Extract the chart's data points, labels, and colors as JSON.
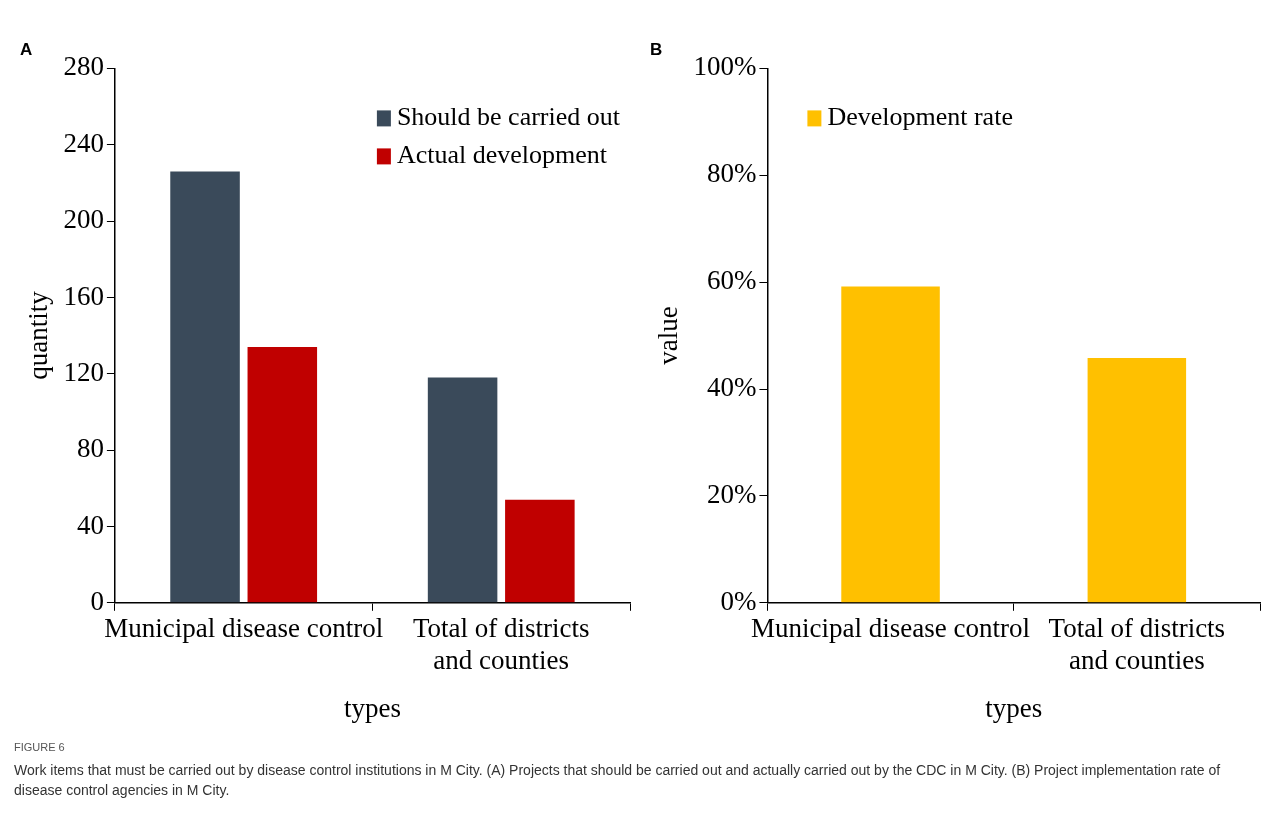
{
  "chart_data": [
    {
      "type": "bar",
      "title": "A",
      "xlabel": "types",
      "ylabel": "quantity",
      "categories": [
        "Municipal disease control",
        "Total of districts and counties"
      ],
      "series": [
        {
          "name": "Should be carried out",
          "color": "#3a4a5a",
          "values": [
            226,
            118
          ]
        },
        {
          "name": "Actual development",
          "color": "#c00000",
          "values": [
            134,
            54
          ]
        }
      ],
      "ylim": [
        0,
        280
      ],
      "yticks": [
        0,
        40,
        80,
        120,
        160,
        200,
        240,
        280
      ],
      "grid": false,
      "legend": "top right",
      "annotations": [
        "FIGURE 6",
        "Work items that must be carried out by disease control institutions in M City. (A) Projects that should be carried out and actually carried out by the CDC in M City. (B) Project implementation rate of disease control agencies in M City."
      ]
    },
    {
      "type": "bar",
      "title": "B",
      "xlabel": "types",
      "ylabel": "value",
      "categories": [
        "Municipal disease control",
        "Total of districts and counties"
      ],
      "series": [
        {
          "name": "Development rate",
          "color": "#ffc000",
          "values": [
            59.2,
            45.8
          ]
        }
      ],
      "ylim": [
        0,
        100
      ],
      "yticks": [
        {
          "value": 0,
          "label": "0%"
        },
        {
          "value": 20,
          "label": "20%"
        },
        {
          "value": 40,
          "label": "40%"
        },
        {
          "value": 60,
          "label": "60%"
        },
        {
          "value": 80,
          "label": "80%"
        },
        {
          "value": 100,
          "label": "100%"
        }
      ],
      "grid": false,
      "legend": "top left"
    }
  ]
}
